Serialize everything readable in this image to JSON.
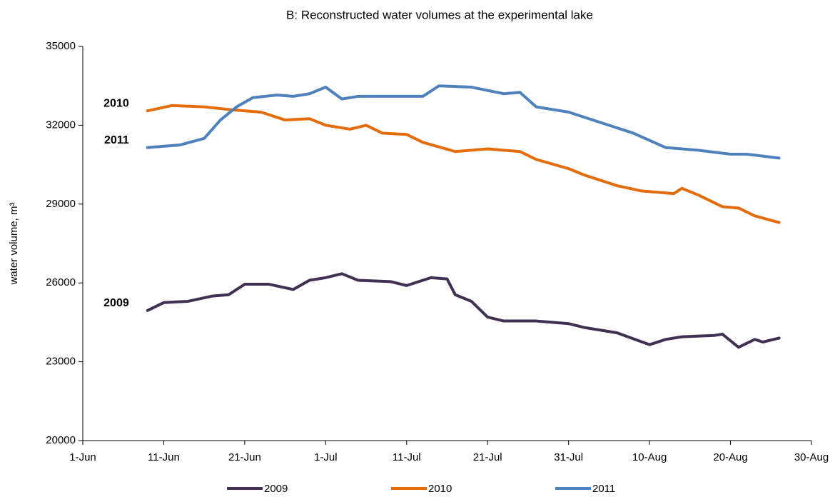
{
  "chart_data": {
    "type": "line",
    "title": "B: Reconstructed water volumes at the experimental lake",
    "y_label": "water volume, m³",
    "xlim": [
      "1-Jun",
      "30-Aug"
    ],
    "xticks": [
      "1-Jun",
      "11-Jun",
      "21-Jun",
      "1-Jul",
      "11-Jul",
      "21-Jul",
      "31-Jul",
      "10-Aug",
      "20-Aug",
      "30-Aug"
    ],
    "ylim": [
      20000,
      35000
    ],
    "yticks": [
      20000,
      23000,
      26000,
      29000,
      32000,
      35000
    ],
    "legend": "bottom",
    "series": [
      {
        "name": "2009",
        "color": "#403152",
        "x": [
          "9-Jun",
          "11-Jun",
          "14-Jun",
          "17-Jun",
          "19-Jun",
          "21-Jun",
          "24-Jun",
          "27-Jun",
          "29-Jun",
          "1-Jul",
          "3-Jul",
          "5-Jul",
          "9-Jul",
          "11-Jul",
          "14-Jul",
          "16-Jul",
          "17-Jul",
          "19-Jul",
          "21-Jul",
          "23-Jul",
          "27-Jul",
          "31-Jul",
          "2-Aug",
          "6-Aug",
          "10-Aug",
          "12-Aug",
          "14-Aug",
          "18-Aug",
          "19-Aug",
          "21-Aug",
          "23-Aug",
          "24-Aug",
          "26-Aug"
        ],
        "values": [
          24950,
          25250,
          25300,
          25500,
          25550,
          25950,
          25950,
          25750,
          26100,
          26200,
          26350,
          26100,
          26050,
          25900,
          26200,
          26150,
          25550,
          25300,
          24700,
          24550,
          24550,
          24450,
          24300,
          24100,
          23650,
          23850,
          23950,
          24000,
          24050,
          23550,
          23850,
          23750,
          23900
        ]
      },
      {
        "name": "2010",
        "color": "#e46c0a",
        "x": [
          "9-Jun",
          "12-Jun",
          "16-Jun",
          "19-Jun",
          "23-Jun",
          "26-Jun",
          "29-Jun",
          "1-Jul",
          "4-Jul",
          "6-Jul",
          "8-Jul",
          "11-Jul",
          "13-Jul",
          "17-Jul",
          "21-Jul",
          "25-Jul",
          "27-Jul",
          "31-Jul",
          "2-Aug",
          "6-Aug",
          "9-Aug",
          "13-Aug",
          "14-Aug",
          "16-Aug",
          "19-Aug",
          "21-Aug",
          "23-Aug",
          "26-Aug"
        ],
        "values": [
          32550,
          32750,
          32700,
          32600,
          32500,
          32200,
          32250,
          32000,
          31850,
          32000,
          31700,
          31650,
          31350,
          31000,
          31100,
          31000,
          30700,
          30350,
          30100,
          29700,
          29500,
          29400,
          29600,
          29350,
          28900,
          28850,
          28550,
          28300
        ]
      },
      {
        "name": "2011",
        "color": "#4f81bd",
        "x": [
          "9-Jun",
          "13-Jun",
          "16-Jun",
          "18-Jun",
          "20-Jun",
          "22-Jun",
          "25-Jun",
          "27-Jun",
          "29-Jun",
          "1-Jul",
          "3-Jul",
          "5-Jul",
          "9-Jul",
          "13-Jul",
          "15-Jul",
          "19-Jul",
          "23-Jul",
          "25-Jul",
          "27-Jul",
          "31-Jul",
          "4-Aug",
          "8-Aug",
          "12-Aug",
          "16-Aug",
          "20-Aug",
          "22-Aug",
          "26-Aug"
        ],
        "values": [
          31150,
          31250,
          31500,
          32200,
          32700,
          33050,
          33150,
          33100,
          33200,
          33450,
          33000,
          33100,
          33100,
          33100,
          33500,
          33450,
          33200,
          33250,
          32700,
          32500,
          32100,
          31700,
          31150,
          31050,
          30900,
          30900,
          30750
        ]
      }
    ]
  }
}
